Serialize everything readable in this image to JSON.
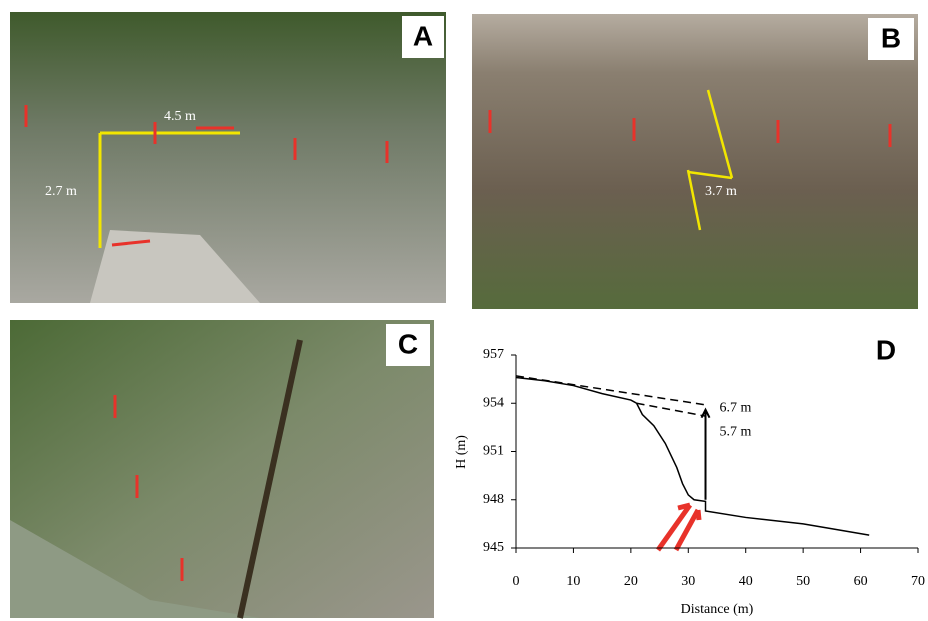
{
  "panels": [
    {
      "label": "A",
      "annotations": [
        "4.5 m",
        "2.7 m"
      ]
    },
    {
      "label": "B",
      "annotations": [
        "3.7 m"
      ]
    },
    {
      "label": "C"
    }
  ],
  "chart_data": {
    "type": "line",
    "panel_label": "D",
    "xlabel": "Distance (m)",
    "ylabel": "H (m)",
    "xlim": [
      0,
      70
    ],
    "xticks": [
      0,
      10,
      20,
      30,
      40,
      50,
      60,
      70
    ],
    "ylim": [
      945,
      957
    ],
    "yticks": [
      945,
      948,
      951,
      954,
      957
    ],
    "annotations": [
      "6.7 m",
      "5.7 m"
    ],
    "series": [
      {
        "color": "#000000",
        "style": "solid",
        "x": [
          0,
          5,
          10,
          15,
          20,
          21,
          22,
          24,
          26,
          28,
          29,
          30,
          31,
          33,
          33,
          40,
          50,
          55,
          61.5
        ],
        "values": [
          955.6,
          955.4,
          955.1,
          954.6,
          954.2,
          954.0,
          953.3,
          952.6,
          951.5,
          950.0,
          949.0,
          948.3,
          948.0,
          947.9,
          947.3,
          946.9,
          946.5,
          946.2,
          945.8
        ]
      },
      {
        "color": "#000000",
        "style": "dashed",
        "x": [
          0,
          33
        ],
        "values": [
          955.7,
          953.9
        ]
      },
      {
        "color": "#000000",
        "style": "dashed",
        "x": [
          21,
          33
        ],
        "values": [
          954.0,
          953.2
        ]
      }
    ]
  }
}
